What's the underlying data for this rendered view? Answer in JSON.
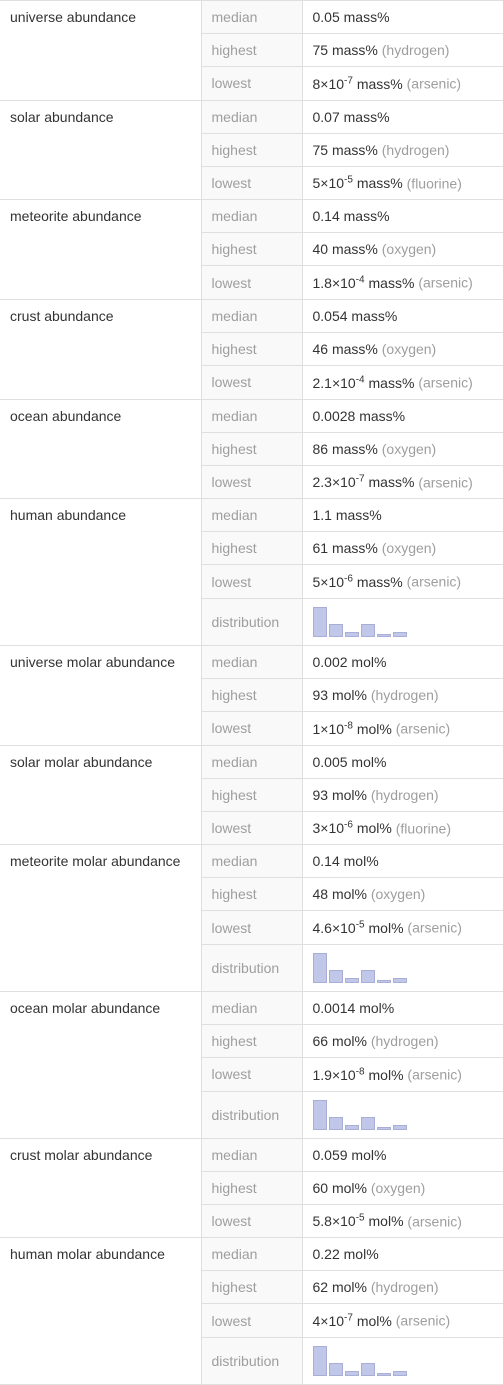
{
  "groups": [
    {
      "name": "universe abundance",
      "rows": [
        {
          "label": "median",
          "value": "0.05 mass%"
        },
        {
          "label": "highest",
          "value": "75 mass%",
          "element": "(hydrogen)"
        },
        {
          "label": "lowest",
          "value_html": "8×10<sup>-7</sup> mass%",
          "element": "(arsenic)"
        }
      ]
    },
    {
      "name": "solar abundance",
      "rows": [
        {
          "label": "median",
          "value": "0.07 mass%"
        },
        {
          "label": "highest",
          "value": "75 mass%",
          "element": "(hydrogen)"
        },
        {
          "label": "lowest",
          "value_html": "5×10<sup>-5</sup> mass%",
          "element": "(fluorine)"
        }
      ]
    },
    {
      "name": "meteorite abundance",
      "rows": [
        {
          "label": "median",
          "value": "0.14 mass%"
        },
        {
          "label": "highest",
          "value": "40 mass%",
          "element": "(oxygen)"
        },
        {
          "label": "lowest",
          "value_html": "1.8×10<sup>-4</sup> mass%",
          "element": "(arsenic)"
        }
      ]
    },
    {
      "name": "crust abundance",
      "rows": [
        {
          "label": "median",
          "value": "0.054 mass%"
        },
        {
          "label": "highest",
          "value": "46 mass%",
          "element": "(oxygen)"
        },
        {
          "label": "lowest",
          "value_html": "2.1×10<sup>-4</sup> mass%",
          "element": "(arsenic)"
        }
      ]
    },
    {
      "name": "ocean abundance",
      "rows": [
        {
          "label": "median",
          "value": "0.0028 mass%"
        },
        {
          "label": "highest",
          "value": "86 mass%",
          "element": "(oxygen)"
        },
        {
          "label": "lowest",
          "value_html": "2.3×10<sup>-7</sup> mass%",
          "element": "(arsenic)"
        }
      ]
    },
    {
      "name": "human abundance",
      "rows": [
        {
          "label": "median",
          "value": "1.1 mass%"
        },
        {
          "label": "highest",
          "value": "61 mass%",
          "element": "(oxygen)"
        },
        {
          "label": "lowest",
          "value_html": "5×10<sup>-6</sup> mass%",
          "element": "(arsenic)"
        },
        {
          "label": "distribution",
          "distribution": [
            30,
            13,
            5,
            13,
            3,
            5
          ]
        }
      ]
    },
    {
      "name": "universe molar abundance",
      "rows": [
        {
          "label": "median",
          "value": "0.002 mol%"
        },
        {
          "label": "highest",
          "value": "93 mol%",
          "element": "(hydrogen)"
        },
        {
          "label": "lowest",
          "value_html": "1×10<sup>-8</sup> mol%",
          "element": "(arsenic)"
        }
      ]
    },
    {
      "name": "solar molar abundance",
      "rows": [
        {
          "label": "median",
          "value": "0.005 mol%"
        },
        {
          "label": "highest",
          "value": "93 mol%",
          "element": "(hydrogen)"
        },
        {
          "label": "lowest",
          "value_html": "3×10<sup>-6</sup> mol%",
          "element": "(fluorine)"
        }
      ]
    },
    {
      "name": "meteorite molar abundance",
      "rows": [
        {
          "label": "median",
          "value": "0.14 mol%"
        },
        {
          "label": "highest",
          "value": "48 mol%",
          "element": "(oxygen)"
        },
        {
          "label": "lowest",
          "value_html": "4.6×10<sup>-5</sup> mol%",
          "element": "(arsenic)"
        },
        {
          "label": "distribution",
          "distribution": [
            30,
            13,
            5,
            13,
            3,
            5
          ]
        }
      ]
    },
    {
      "name": "ocean molar abundance",
      "rows": [
        {
          "label": "median",
          "value": "0.0014 mol%"
        },
        {
          "label": "highest",
          "value": "66 mol%",
          "element": "(hydrogen)"
        },
        {
          "label": "lowest",
          "value_html": "1.9×10<sup>-8</sup> mol%",
          "element": "(arsenic)"
        },
        {
          "label": "distribution",
          "distribution": [
            30,
            13,
            5,
            13,
            3,
            5
          ]
        }
      ]
    },
    {
      "name": "crust molar abundance",
      "rows": [
        {
          "label": "median",
          "value": "0.059 mol%"
        },
        {
          "label": "highest",
          "value": "60 mol%",
          "element": "(oxygen)"
        },
        {
          "label": "lowest",
          "value_html": "5.8×10<sup>-5</sup> mol%",
          "element": "(arsenic)"
        }
      ]
    },
    {
      "name": "human molar abundance",
      "rows": [
        {
          "label": "median",
          "value": "0.22 mol%"
        },
        {
          "label": "highest",
          "value": "62 mol%",
          "element": "(hydrogen)"
        },
        {
          "label": "lowest",
          "value_html": "4×10<sup>-7</sup> mol%",
          "element": "(arsenic)"
        },
        {
          "label": "distribution",
          "distribution": [
            30,
            13,
            5,
            13,
            3,
            5
          ]
        }
      ]
    }
  ],
  "colors": {
    "text": "#333333",
    "muted": "#9e9e9e",
    "border": "#dfdfdf",
    "label_bg": "#f9f9f9",
    "bar_fill": "#c1c7e8",
    "bar_border": "#a8aed6"
  }
}
